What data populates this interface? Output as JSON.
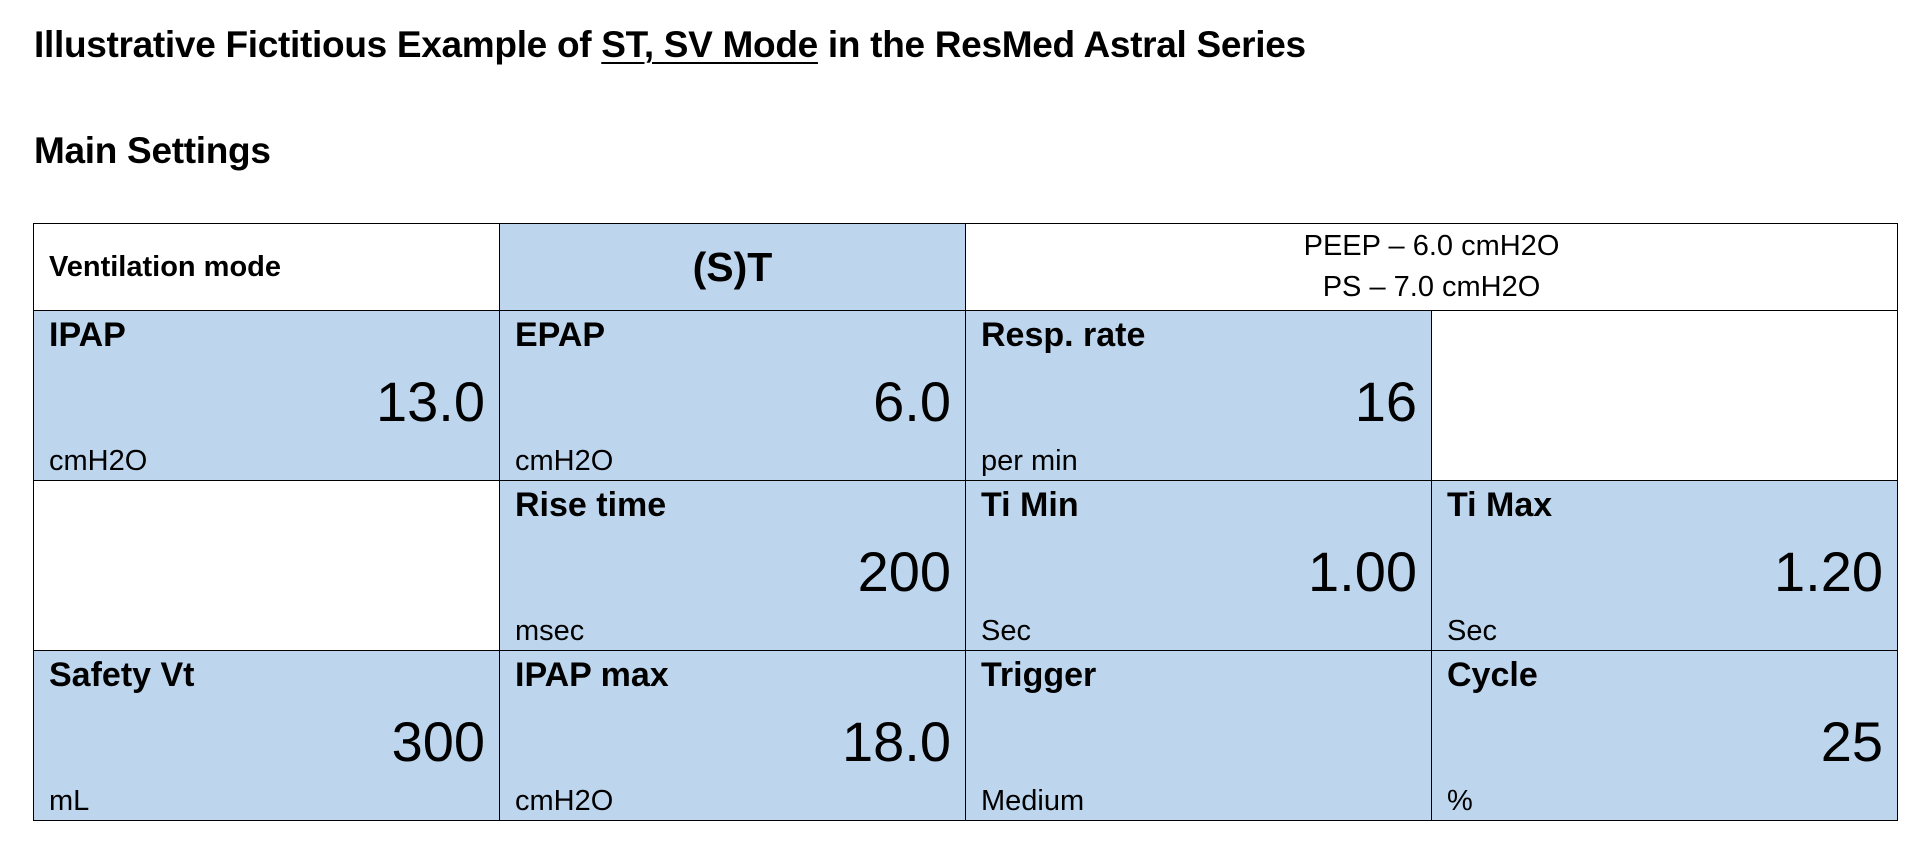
{
  "title": {
    "prefix": "Illustrative Fictitious Example of ",
    "emphasis": "ST, SV Mode",
    "suffix": " in the ResMed Astral Series"
  },
  "subtitle": "Main Settings",
  "ventilation": {
    "label": "Ventilation mode",
    "value": "(S)T",
    "info_line1": "PEEP – 6.0 cmH2O",
    "info_line2": "PS – 7.0 cmH2O"
  },
  "rows": [
    [
      {
        "label": "IPAP",
        "value": "13.0",
        "unit": "cmH2O"
      },
      {
        "label": "EPAP",
        "value": "6.0",
        "unit": "cmH2O"
      },
      {
        "label": "Resp. rate",
        "value": "16",
        "unit": "per min"
      }
    ],
    [
      {
        "label": "Rise time",
        "value": "200",
        "unit": "msec"
      },
      {
        "label": "Ti Min",
        "value": "1.00",
        "unit": "Sec"
      },
      {
        "label": "Ti Max",
        "value": "1.20",
        "unit": "Sec"
      }
    ],
    [
      {
        "label": "Safety Vt",
        "value": "300",
        "unit": "mL"
      },
      {
        "label": "IPAP max",
        "value": "18.0",
        "unit": "cmH2O"
      },
      {
        "label": "Trigger",
        "value": "",
        "unit": "Medium"
      },
      {
        "label": "Cycle",
        "value": "25",
        "unit": "%"
      }
    ]
  ],
  "colors": {
    "cell_blue": "#bdd6ee",
    "border": "#000000"
  }
}
